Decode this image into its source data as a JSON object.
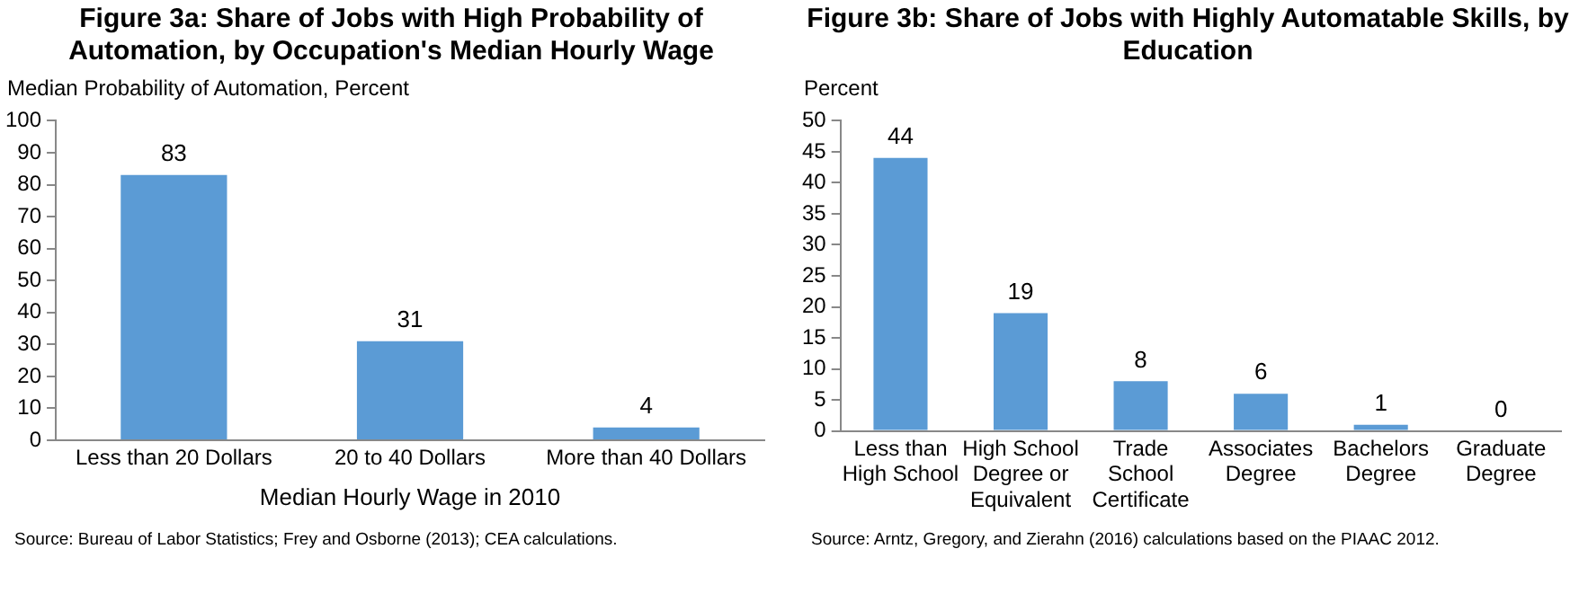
{
  "chart_data": [
    {
      "type": "bar",
      "title": "Figure 3a: Share of Jobs with High Probability of Automation, by Occupation's Median Hourly Wage",
      "ylabel": "Median Probability of Automation, Percent",
      "xlabel": "Median Hourly Wage in 2010",
      "categories": [
        "Less than 20 Dollars",
        "20 to 40 Dollars",
        "More than 40 Dollars"
      ],
      "values": [
        83,
        31,
        4
      ],
      "color": "#5b9bd5",
      "ylim": [
        0,
        100
      ],
      "yticks": [
        0,
        10,
        20,
        30,
        40,
        50,
        60,
        70,
        80,
        90,
        100
      ],
      "grid": false,
      "data_labels": true,
      "annotations": [
        "Source: Bureau of Labor Statistics; Frey and Osborne (2013); CEA calculations."
      ]
    },
    {
      "type": "bar",
      "title": "Figure 3b: Share of Jobs with Highly Automatable Skills, by Education",
      "ylabel": "Percent",
      "categories": [
        "Less than High School",
        "High School Degree or Equivalent",
        "Trade School Certificate",
        "Associates Degree",
        "Bachelors Degree",
        "Graduate Degree"
      ],
      "values": [
        44,
        19,
        8,
        6,
        1,
        0
      ],
      "color": "#5b9bd5",
      "ylim": [
        0,
        50
      ],
      "yticks": [
        0,
        5,
        10,
        15,
        20,
        25,
        30,
        35,
        40,
        45,
        50
      ],
      "grid": false,
      "data_labels": true,
      "annotations": [
        "Source: Arntz, Gregory, and Zierahn (2016) calculations based on the PIAAC 2012."
      ]
    }
  ]
}
